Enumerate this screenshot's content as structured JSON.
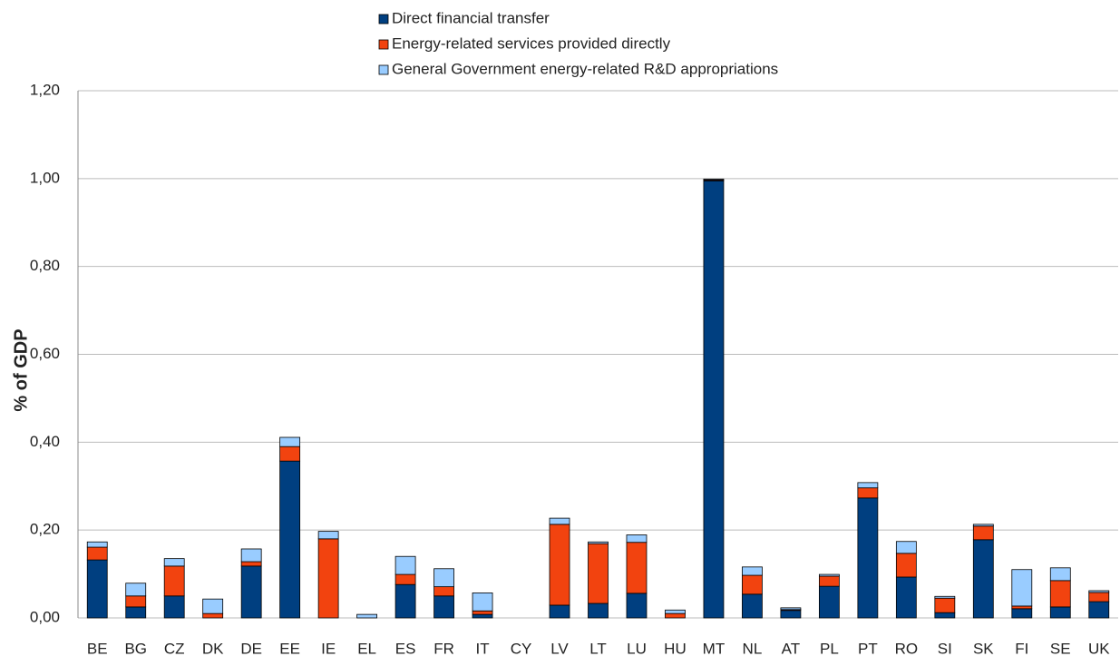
{
  "chart_data": {
    "type": "stacked-bar",
    "y_label": "% of GDP",
    "categories": [
      "BE",
      "BG",
      "CZ",
      "DK",
      "DE",
      "EE",
      "IE",
      "EL",
      "ES",
      "FR",
      "IT",
      "CY",
      "LV",
      "LT",
      "LU",
      "HU",
      "MT",
      "NL",
      "AT",
      "PL",
      "PT",
      "RO",
      "SI",
      "SK",
      "FI",
      "SE",
      "UK"
    ],
    "series": [
      {
        "name": "Direct financial transfer",
        "color": "#003f80",
        "values": [
          0.132,
          0.025,
          0.05,
          0,
          0.118,
          0.357,
          0,
          0,
          0.076,
          0.05,
          0.008,
          0,
          0.029,
          0.033,
          0.056,
          0,
          0.995,
          0.054,
          0.017,
          0.072,
          0.273,
          0.093,
          0.012,
          0.178,
          0.021,
          0.025,
          0.037
        ]
      },
      {
        "name": "Energy-related  services provided directly",
        "color": "#f2430f",
        "values": [
          0.029,
          0.025,
          0.068,
          0.01,
          0.01,
          0.033,
          0.18,
          0,
          0.023,
          0.021,
          0.008,
          0,
          0.184,
          0.136,
          0.116,
          0.01,
          0.002,
          0.043,
          0.002,
          0.023,
          0.023,
          0.054,
          0.033,
          0.031,
          0.006,
          0.06,
          0.021
        ]
      },
      {
        "name": "General Government energy-related  R&D appropriations",
        "color": "#99ccff",
        "values": [
          0.012,
          0.029,
          0.017,
          0.033,
          0.029,
          0.021,
          0.017,
          0.008,
          0.041,
          0.041,
          0.041,
          0,
          0.014,
          0.004,
          0.017,
          0.008,
          0.002,
          0.019,
          0.004,
          0.004,
          0.012,
          0.027,
          0.004,
          0.004,
          0.083,
          0.029,
          0.004
        ]
      }
    ],
    "ylim": [
      0,
      1.2
    ],
    "yticks": [
      {
        "value": 0,
        "label": "0,00"
      },
      {
        "value": 0.2,
        "label": "0,20"
      },
      {
        "value": 0.4,
        "label": "0,40"
      },
      {
        "value": 0.6,
        "label": "0,60"
      },
      {
        "value": 0.8,
        "label": "0,80"
      },
      {
        "value": 1.0,
        "label": "1,00"
      },
      {
        "value": 1.2,
        "label": "1,20"
      }
    ],
    "grid": true
  }
}
